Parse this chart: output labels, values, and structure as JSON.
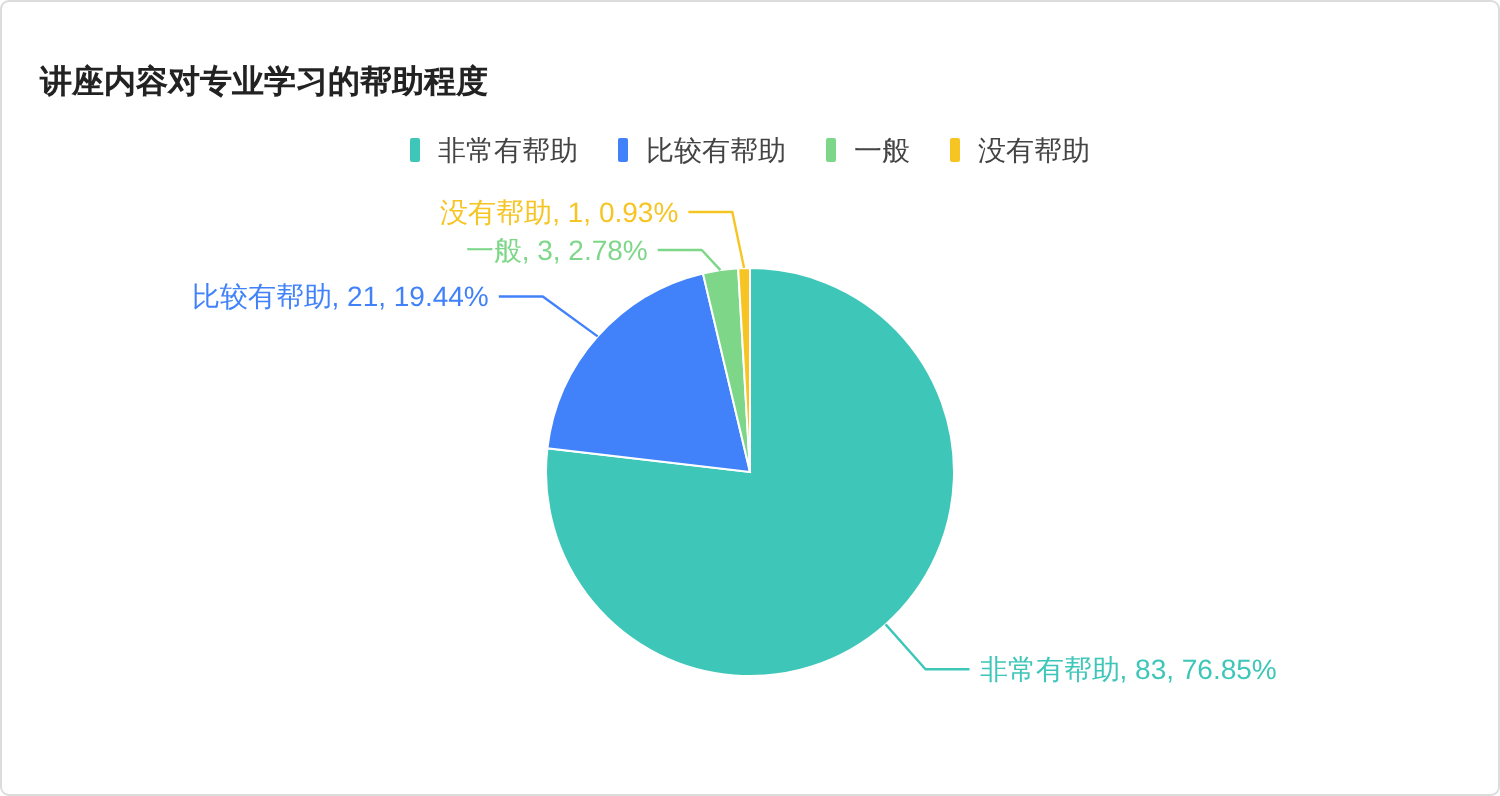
{
  "chart_data": {
    "type": "pie",
    "title": "讲座内容对专业学习的帮助程度",
    "categories": [
      "非常有帮助",
      "比较有帮助",
      "一般",
      "没有帮助"
    ],
    "values": [
      83,
      21,
      3,
      1
    ],
    "colors": [
      "#3ec6b9",
      "#4182fa",
      "#7ed789",
      "#f6c523"
    ],
    "value_labels": [
      "非常有帮助, 83, 76.85%",
      "比较有帮助, 21, 19.44%",
      "一般, 3, 2.78%",
      "没有帮助, 1, 0.93%"
    ],
    "legend": "top"
  }
}
